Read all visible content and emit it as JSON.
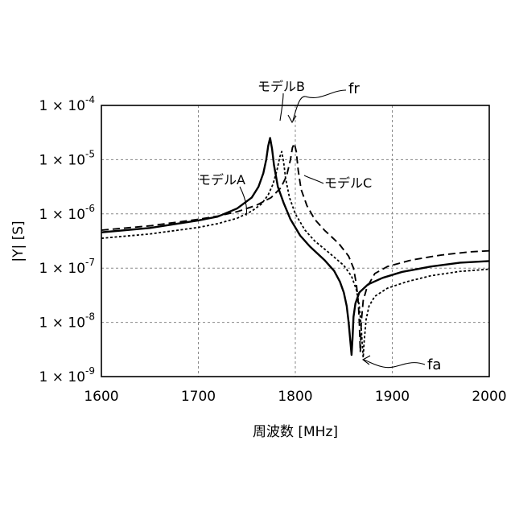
{
  "chart_data": {
    "type": "line",
    "title": "",
    "xlabel": "周波数 [MHz]",
    "ylabel": "|Y| [S]",
    "xlim": [
      1600,
      2000
    ],
    "ylim_log10": [
      -9,
      -4
    ],
    "y_scale": "log",
    "grid": true,
    "x_ticks": [
      {
        "value": 1600,
        "label": "1600"
      },
      {
        "value": 1700,
        "label": "1700"
      },
      {
        "value": 1800,
        "label": "1800"
      },
      {
        "value": 1900,
        "label": "1900"
      },
      {
        "value": 2000,
        "label": "2000"
      }
    ],
    "y_ticks": [
      {
        "exp": -4,
        "mant": "1 × 10",
        "sup": "-4"
      },
      {
        "exp": -5,
        "mant": "1 × 10",
        "sup": "-5"
      },
      {
        "exp": -6,
        "mant": "1 × 10",
        "sup": "-6"
      },
      {
        "exp": -7,
        "mant": "1 × 10",
        "sup": "-7"
      },
      {
        "exp": -8,
        "mant": "1 × 10",
        "sup": "-8"
      },
      {
        "exp": -9,
        "mant": "1 × 10",
        "sup": "-9"
      }
    ],
    "series": [
      {
        "name": "モデルA",
        "style": "solid",
        "fr": 1774,
        "fa": 1858,
        "points": [
          [
            1600,
            -6.34
          ],
          [
            1650,
            -6.26
          ],
          [
            1700,
            -6.12
          ],
          [
            1720,
            -6.05
          ],
          [
            1740,
            -5.9
          ],
          [
            1755,
            -5.7
          ],
          [
            1762,
            -5.5
          ],
          [
            1767,
            -5.25
          ],
          [
            1770,
            -5.0
          ],
          [
            1772,
            -4.75
          ],
          [
            1774,
            -4.6
          ],
          [
            1776,
            -4.8
          ],
          [
            1778,
            -5.1
          ],
          [
            1782,
            -5.5
          ],
          [
            1788,
            -5.8
          ],
          [
            1795,
            -6.1
          ],
          [
            1805,
            -6.4
          ],
          [
            1815,
            -6.6
          ],
          [
            1830,
            -6.85
          ],
          [
            1840,
            -7.05
          ],
          [
            1846,
            -7.25
          ],
          [
            1850,
            -7.45
          ],
          [
            1853,
            -7.7
          ],
          [
            1855,
            -8.0
          ],
          [
            1857,
            -8.4
          ],
          [
            1858,
            -8.6
          ],
          [
            1859,
            -8.3
          ],
          [
            1860,
            -7.9
          ],
          [
            1862,
            -7.65
          ],
          [
            1866,
            -7.45
          ],
          [
            1875,
            -7.3
          ],
          [
            1890,
            -7.18
          ],
          [
            1910,
            -7.07
          ],
          [
            1940,
            -6.97
          ],
          [
            1970,
            -6.9
          ],
          [
            2000,
            -6.87
          ]
        ]
      },
      {
        "name": "モデルB",
        "style": "dotted",
        "fr": 1786,
        "fa": 1870,
        "points": [
          [
            1600,
            -6.45
          ],
          [
            1650,
            -6.37
          ],
          [
            1700,
            -6.25
          ],
          [
            1720,
            -6.18
          ],
          [
            1740,
            -6.08
          ],
          [
            1755,
            -5.95
          ],
          [
            1765,
            -5.82
          ],
          [
            1772,
            -5.65
          ],
          [
            1777,
            -5.45
          ],
          [
            1781,
            -5.2
          ],
          [
            1784,
            -4.95
          ],
          [
            1786,
            -4.85
          ],
          [
            1788,
            -5.05
          ],
          [
            1790,
            -5.35
          ],
          [
            1794,
            -5.7
          ],
          [
            1800,
            -6.0
          ],
          [
            1810,
            -6.3
          ],
          [
            1820,
            -6.5
          ],
          [
            1835,
            -6.72
          ],
          [
            1850,
            -6.95
          ],
          [
            1858,
            -7.15
          ],
          [
            1863,
            -7.4
          ],
          [
            1866,
            -7.7
          ],
          [
            1868,
            -8.1
          ],
          [
            1869,
            -8.4
          ],
          [
            1870,
            -8.65
          ],
          [
            1871,
            -8.35
          ],
          [
            1873,
            -7.95
          ],
          [
            1876,
            -7.7
          ],
          [
            1882,
            -7.52
          ],
          [
            1895,
            -7.37
          ],
          [
            1915,
            -7.25
          ],
          [
            1940,
            -7.14
          ],
          [
            1970,
            -7.06
          ],
          [
            2000,
            -7.02
          ]
        ]
      },
      {
        "name": "モデルC",
        "style": "dashed",
        "fr": 1799,
        "fa": 1867,
        "points": [
          [
            1600,
            -6.3
          ],
          [
            1650,
            -6.22
          ],
          [
            1700,
            -6.1
          ],
          [
            1720,
            -6.04
          ],
          [
            1740,
            -5.96
          ],
          [
            1760,
            -5.84
          ],
          [
            1775,
            -5.7
          ],
          [
            1785,
            -5.52
          ],
          [
            1791,
            -5.3
          ],
          [
            1795,
            -5.0
          ],
          [
            1797,
            -4.78
          ],
          [
            1799,
            -4.7
          ],
          [
            1801,
            -4.85
          ],
          [
            1803,
            -5.2
          ],
          [
            1806,
            -5.55
          ],
          [
            1812,
            -5.85
          ],
          [
            1820,
            -6.1
          ],
          [
            1830,
            -6.3
          ],
          [
            1845,
            -6.55
          ],
          [
            1855,
            -6.78
          ],
          [
            1860,
            -7.0
          ],
          [
            1863,
            -7.3
          ],
          [
            1865,
            -7.65
          ],
          [
            1866,
            -8.0
          ],
          [
            1867,
            -8.55
          ],
          [
            1868,
            -8.0
          ],
          [
            1870,
            -7.6
          ],
          [
            1874,
            -7.35
          ],
          [
            1882,
            -7.1
          ],
          [
            1895,
            -6.97
          ],
          [
            1920,
            -6.85
          ],
          [
            1950,
            -6.76
          ],
          [
            1980,
            -6.7
          ],
          [
            2000,
            -6.68
          ]
        ]
      }
    ],
    "annotations": [
      {
        "id": "label-a",
        "text": "モデルA"
      },
      {
        "id": "label-b",
        "text": "モデルB"
      },
      {
        "id": "label-c",
        "text": "モデルC"
      },
      {
        "id": "label-fr",
        "text": "fr"
      },
      {
        "id": "label-fa",
        "text": "fa"
      }
    ]
  }
}
